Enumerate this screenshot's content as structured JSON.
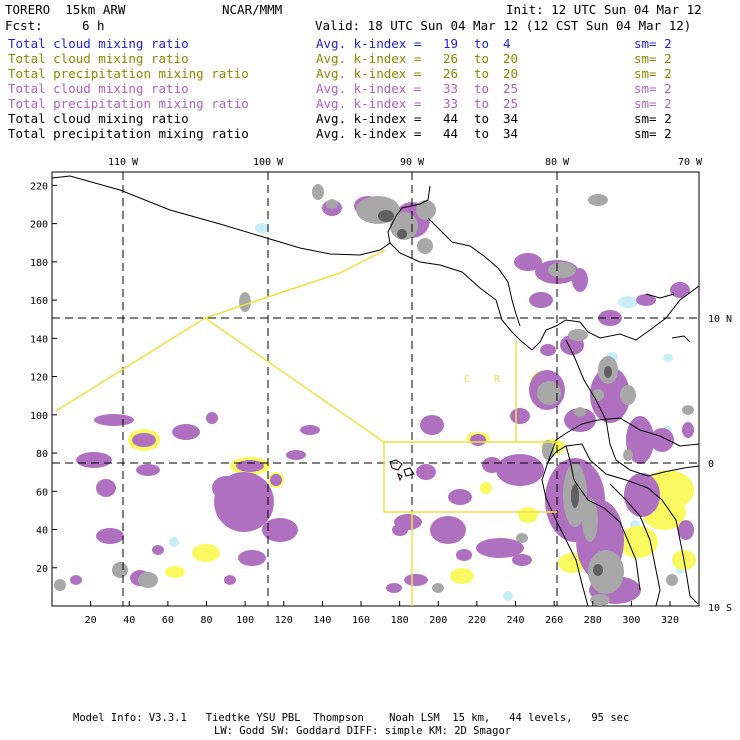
{
  "header": {
    "model": "TORERO  15km ARW",
    "center": "NCAR/MMM",
    "init": "Init: 12 UTC Sun 04 Mar 12",
    "fcst_label": "Fcst:",
    "fcst_value": "6 h",
    "valid": "Valid: 18 UTC Sun 04 Mar 12 (12 CST Sun 04 Mar 12)"
  },
  "legend": [
    {
      "field": "Total cloud mixing ratio",
      "kindex": "Avg. k-index =",
      "hi": "19",
      "to": "to",
      "lo": "4",
      "sm": "sm= 2",
      "color": "#1f1fd6"
    },
    {
      "field": "Total cloud mixing ratio",
      "kindex": "Avg. k-index =",
      "hi": "26",
      "to": "to",
      "lo": "20",
      "sm": "sm= 2",
      "color": "#8a8a00"
    },
    {
      "field": "Total precipitation mixing ratio",
      "kindex": "Avg. k-index =",
      "hi": "26",
      "to": "to",
      "lo": "20",
      "sm": "sm= 2",
      "color": "#8a8a00"
    },
    {
      "field": "Total cloud mixing ratio",
      "kindex": "Avg. k-index =",
      "hi": "33",
      "to": "to",
      "lo": "25",
      "sm": "sm= 2",
      "color": "#b060c0"
    },
    {
      "field": "Total precipitation mixing ratio",
      "kindex": "Avg. k-index =",
      "hi": "33",
      "to": "to",
      "lo": "25",
      "sm": "sm= 2",
      "color": "#b060c0"
    },
    {
      "field": "Total cloud mixing ratio",
      "kindex": "Avg. k-index =",
      "hi": "44",
      "to": "to",
      "lo": "34",
      "sm": "sm= 2",
      "color": "#000000"
    },
    {
      "field": "Total precipitation mixing ratio",
      "kindex": "Avg. k-index =",
      "hi": "44",
      "to": "to",
      "lo": "34",
      "sm": "sm= 2",
      "color": "#000000"
    }
  ],
  "map": {
    "top_labels": [
      "110 W",
      "100 W",
      "90 W",
      "80 W",
      "70 W"
    ],
    "right_labels": [
      "10 N",
      "0",
      "10 S"
    ],
    "x_ticks": [
      "20",
      "40",
      "60",
      "80",
      "100",
      "120",
      "140",
      "160",
      "180",
      "200",
      "220",
      "240",
      "260",
      "280",
      "300",
      "320"
    ],
    "y_ticks": [
      "20",
      "40",
      "60",
      "80",
      "100",
      "120",
      "140",
      "160",
      "180",
      "200",
      "220"
    ],
    "xlim": [
      0,
      335
    ],
    "ylim": [
      0,
      227
    ],
    "colors": {
      "cloud_light": "#c8eef8",
      "cloud_med": "#fafa60",
      "precip_purple": "#b070c0",
      "heavy_gray": "#a8a8a8",
      "track": "#f0e040",
      "coast": "#000000"
    },
    "annotations": [
      "C",
      "R"
    ]
  },
  "footer": {
    "line1": "Model Info: V3.3.1   Tiedtke YSU PBL  Thompson    Noah LSM  15 km,   44 levels,   95 sec",
    "line2": "LW: Godd SW: Goddard DIFF: simple KM: 2D Smagor"
  }
}
